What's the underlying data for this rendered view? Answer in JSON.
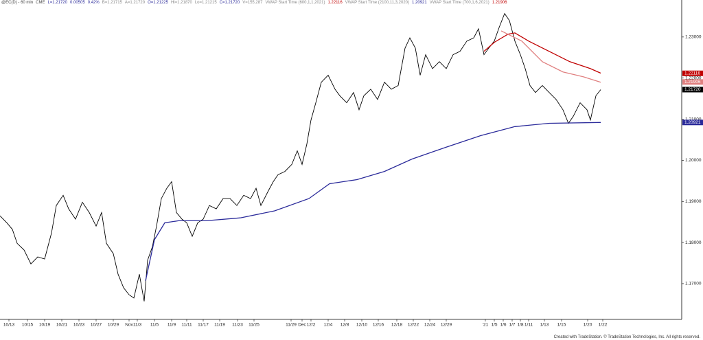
{
  "header": [
    "@EC(D) - 60 min",
    "CME",
    "L=1.21720",
    "0.00505",
    "0.42%",
    "B=1.21715",
    "A=1.21720",
    "O=1.21225",
    "Hi=1.21870",
    "Lo=1.21215",
    "C=1.21720",
    "V=155,287",
    "VWAP Start Time (600,1,1,2021)",
    "1.22116",
    "VWAP Start Time (2100,11,3,2020)",
    "1.20921",
    "VWAP Start Time (700,1,6,2021)",
    "1.21906"
  ],
  "footer": "Created with TradeStation. © TradeStation Technologies, Inc. All rights reserved.",
  "chart_data": {
    "type": "line",
    "xlim": [
      0,
      993
    ],
    "ylim": [
      1.1613,
      1.239
    ],
    "yticks": [
      {
        "value": 1.17,
        "label": "1.17000"
      },
      {
        "value": 1.18,
        "label": "1.18000"
      },
      {
        "value": 1.19,
        "label": "1.19000"
      },
      {
        "value": 1.2,
        "label": "1.20000"
      },
      {
        "value": 1.21,
        "label": "1.21000"
      },
      {
        "value": 1.22,
        "label": "1.22000"
      },
      {
        "value": 1.23,
        "label": "1.23000"
      }
    ],
    "xticks": [
      {
        "value": 13,
        "label": "10/13"
      },
      {
        "value": 40,
        "label": "10/15"
      },
      {
        "value": 65,
        "label": "10/19"
      },
      {
        "value": 90,
        "label": "10/21"
      },
      {
        "value": 115,
        "label": "10/23"
      },
      {
        "value": 140,
        "label": "10/27"
      },
      {
        "value": 165,
        "label": "10/29"
      },
      {
        "value": 188,
        "label": "Nov"
      },
      {
        "value": 200,
        "label": "11/3"
      },
      {
        "value": 225,
        "label": "11/5"
      },
      {
        "value": 250,
        "label": "11/9"
      },
      {
        "value": 272,
        "label": "11/11"
      },
      {
        "value": 296,
        "label": "11/17"
      },
      {
        "value": 320,
        "label": "11/19"
      },
      {
        "value": 346,
        "label": "11/23"
      },
      {
        "value": 370,
        "label": "11/25"
      },
      {
        "value": 424,
        "label": "11/29"
      },
      {
        "value": 440,
        "label": "Dec"
      },
      {
        "value": 453,
        "label": "12/2"
      },
      {
        "value": 478,
        "label": "12/4"
      },
      {
        "value": 502,
        "label": "12/8"
      },
      {
        "value": 527,
        "label": "12/10"
      },
      {
        "value": 551,
        "label": "12/16"
      },
      {
        "value": 578,
        "label": "12/18"
      },
      {
        "value": 602,
        "label": "12/22"
      },
      {
        "value": 626,
        "label": "12/24"
      },
      {
        "value": 650,
        "label": "12/29"
      },
      {
        "value": 707,
        "label": "'21"
      },
      {
        "value": 720,
        "label": "1/5"
      },
      {
        "value": 733,
        "label": "1/6"
      },
      {
        "value": 746,
        "label": "1/7"
      },
      {
        "value": 758,
        "label": "1/8"
      },
      {
        "value": 770,
        "label": "1/11"
      },
      {
        "value": 793,
        "label": "1/13"
      },
      {
        "value": 818,
        "label": "1/15"
      },
      {
        "value": 856,
        "label": "1/20"
      },
      {
        "value": 878,
        "label": "1/22"
      }
    ],
    "series": [
      {
        "name": "@EC(D) - 60 min",
        "color": "#000000",
        "last": {
          "value": 1.2172,
          "label": "1.21720"
        },
        "x": [
          0,
          10,
          18,
          25,
          35,
          45,
          55,
          65,
          75,
          82,
          92,
          100,
          110,
          120,
          130,
          140,
          148,
          155,
          165,
          172,
          180,
          188,
          195,
          203,
          210,
          215,
          222,
          228,
          235,
          243,
          250,
          257,
          265,
          272,
          280,
          288,
          296,
          305,
          315,
          325,
          335,
          345,
          355,
          365,
          373,
          380,
          390,
          398,
          405,
          415,
          425,
          433,
          440,
          447,
          453,
          460,
          468,
          478,
          488,
          495,
          505,
          515,
          523,
          530,
          540,
          550,
          560,
          570,
          580,
          590,
          597,
          605,
          612,
          620,
          630,
          640,
          650,
          660,
          670,
          680,
          690,
          697,
          705,
          712,
          720,
          727,
          735,
          742,
          750,
          758,
          765,
          772,
          780,
          790,
          800,
          810,
          820,
          828,
          835,
          845,
          855,
          860,
          868,
          875
        ],
        "values": [
          1.1865,
          1.1848,
          1.1832,
          1.1798,
          1.1782,
          1.1748,
          1.1765,
          1.176,
          1.1823,
          1.189,
          1.1915,
          1.1882,
          1.1857,
          1.1898,
          1.1873,
          1.184,
          1.1873,
          1.1798,
          1.1773,
          1.1723,
          1.169,
          1.1673,
          1.1665,
          1.1723,
          1.1657,
          1.1757,
          1.179,
          1.184,
          1.1907,
          1.1932,
          1.1948,
          1.1873,
          1.1857,
          1.1848,
          1.1815,
          1.1848,
          1.1857,
          1.189,
          1.1882,
          1.1907,
          1.1907,
          1.189,
          1.1915,
          1.1907,
          1.1932,
          1.189,
          1.1923,
          1.1948,
          1.1965,
          1.1973,
          1.199,
          1.2023,
          1.199,
          1.204,
          1.2098,
          1.214,
          1.219,
          1.2207,
          1.2173,
          1.2157,
          1.214,
          1.2165,
          1.2123,
          1.2157,
          1.2173,
          1.2148,
          1.219,
          1.2173,
          1.2182,
          1.2273,
          1.2298,
          1.2273,
          1.2207,
          1.2257,
          1.2223,
          1.224,
          1.2223,
          1.2257,
          1.2265,
          1.229,
          1.2298,
          1.232,
          1.2257,
          1.2273,
          1.229,
          1.2323,
          1.2357,
          1.234,
          1.229,
          1.2257,
          1.2223,
          1.2182,
          1.2165,
          1.2182,
          1.2165,
          1.2148,
          1.2123,
          1.209,
          1.2107,
          1.214,
          1.2123,
          1.2098,
          1.2157,
          1.2172
        ]
      },
      {
        "name": "VWAP Start Time (600,1,1,2021)",
        "color": "#c00000",
        "last": 1.22116,
        "x": [
          705,
          720,
          740,
          750,
          770,
          800,
          830,
          860,
          875
        ],
        "values": [
          1.2265,
          1.2287,
          1.2307,
          1.231,
          1.229,
          1.2265,
          1.224,
          1.2223,
          1.2212
        ]
      },
      {
        "name": "VWAP Start Time (2100,11,3,2020)",
        "color": "#2a2a9a",
        "last": 1.20921,
        "x": [
          212,
          225,
          240,
          260,
          300,
          350,
          400,
          450,
          480,
          520,
          560,
          600,
          650,
          700,
          750,
          800,
          875
        ],
        "values": [
          1.1707,
          1.1807,
          1.1848,
          1.1853,
          1.1853,
          1.186,
          1.1877,
          1.1907,
          1.1943,
          1.1953,
          1.1973,
          1.2003,
          1.2032,
          1.206,
          1.2082,
          1.209,
          1.2092
        ]
      },
      {
        "name": "VWAP Start Time (700,1,6,2021)",
        "color": "#e08080",
        "last": 1.21906,
        "x": [
          730,
          760,
          790,
          820,
          850,
          875
        ],
        "values": [
          1.2315,
          1.229,
          1.224,
          1.2215,
          1.2203,
          1.219
        ]
      }
    ]
  }
}
